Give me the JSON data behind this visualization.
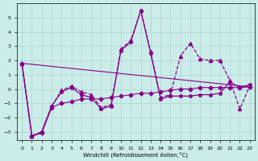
{
  "xlabel": "Windchill (Refroidissement éolien,°C)",
  "background_color": "#ccecea",
  "grid_color": "#aad4d0",
  "line_color": "#880088",
  "xlim": [
    -0.5,
    23.5
  ],
  "ylim": [
    -3.6,
    6.0
  ],
  "yticks": [
    -3,
    -2,
    -1,
    0,
    1,
    2,
    3,
    4,
    5
  ],
  "xticks": [
    0,
    1,
    2,
    3,
    4,
    5,
    6,
    7,
    8,
    9,
    10,
    11,
    12,
    13,
    14,
    15,
    16,
    17,
    18,
    19,
    20,
    21,
    22,
    23
  ],
  "series1_x": [
    0,
    1,
    2,
    3,
    4,
    5,
    6,
    7,
    8,
    9,
    10,
    11,
    12,
    13,
    14,
    15,
    16,
    17,
    18,
    19,
    20,
    21,
    22,
    23
  ],
  "series1_y": [
    1.8,
    -3.3,
    -3.0,
    -1.2,
    -0.2,
    0.1,
    -0.4,
    -0.6,
    -1.4,
    -1.2,
    2.7,
    3.3,
    5.5,
    2.5,
    -0.7,
    -0.5,
    -0.5,
    -0.5,
    -0.4,
    -0.4,
    -0.3,
    0.5,
    0.1,
    0.3
  ],
  "series2_x": [
    0,
    1,
    2,
    3,
    4,
    5,
    6,
    7,
    8,
    9,
    10,
    11,
    12,
    13,
    14,
    15,
    16,
    17,
    18,
    19,
    20,
    21,
    22,
    23
  ],
  "series2_y": [
    1.8,
    -3.3,
    -3.0,
    -1.2,
    -0.1,
    0.2,
    -0.2,
    -0.4,
    -1.3,
    -1.1,
    2.8,
    3.4,
    5.5,
    2.6,
    -0.6,
    -0.4,
    2.3,
    3.2,
    2.1,
    2.0,
    2.0,
    0.6,
    -1.4,
    0.2
  ],
  "series3_x": [
    0,
    1,
    2,
    3,
    4,
    5,
    6,
    7,
    8,
    9,
    10,
    11,
    12,
    13,
    14,
    15,
    16,
    17,
    18,
    19,
    20,
    21,
    22,
    23
  ],
  "series3_y": [
    1.8,
    -3.3,
    -3.1,
    -1.3,
    -1.0,
    -0.9,
    -0.7,
    -0.7,
    -0.7,
    -0.6,
    -0.5,
    -0.4,
    -0.3,
    -0.3,
    -0.2,
    -0.1,
    0.0,
    0.0,
    0.1,
    0.1,
    0.1,
    0.1,
    0.1,
    0.15
  ],
  "series4_x": [
    0,
    23
  ],
  "series4_y": [
    1.8,
    0.15
  ]
}
